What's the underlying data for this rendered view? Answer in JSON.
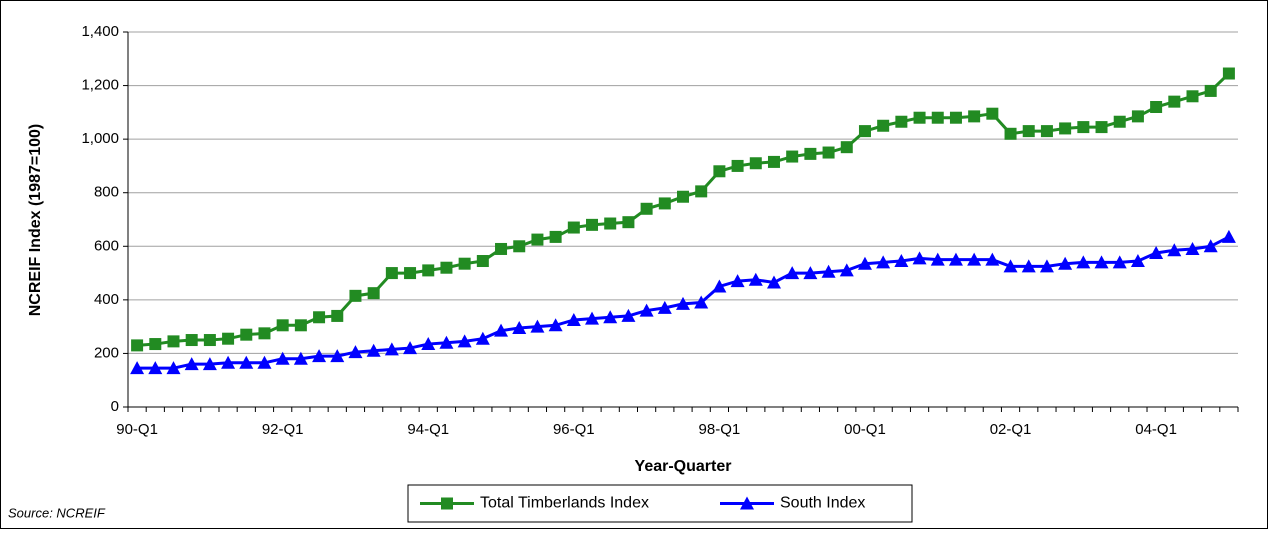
{
  "chart_data": {
    "type": "line",
    "y_label": "NCREIF Index (1987=100)",
    "x_label": "Year-Quarter",
    "source": "Source: NCREIF",
    "categories": [
      "90-Q1",
      null,
      null,
      null,
      null,
      null,
      null,
      null,
      "92-Q1",
      null,
      null,
      null,
      null,
      null,
      null,
      null,
      "94-Q1",
      null,
      null,
      null,
      null,
      null,
      null,
      null,
      "96-Q1",
      null,
      null,
      null,
      null,
      null,
      null,
      null,
      "98-Q1",
      null,
      null,
      null,
      null,
      null,
      null,
      null,
      "00-Q1",
      null,
      null,
      null,
      null,
      null,
      null,
      null,
      "02-Q1",
      null,
      null,
      null,
      null,
      null,
      null,
      null,
      "04-Q1",
      null,
      null,
      null,
      null
    ],
    "series": [
      {
        "name": "Total Timberlands Index",
        "color": "#228b22",
        "marker": "square",
        "values": [
          230,
          235,
          245,
          250,
          250,
          255,
          270,
          275,
          305,
          305,
          335,
          340,
          415,
          425,
          500,
          500,
          510,
          520,
          535,
          545,
          590,
          600,
          625,
          635,
          670,
          680,
          685,
          690,
          740,
          760,
          785,
          805,
          880,
          900,
          910,
          915,
          935,
          945,
          950,
          970,
          1030,
          1050,
          1065,
          1080,
          1080,
          1080,
          1085,
          1095,
          1020,
          1030,
          1030,
          1040,
          1045,
          1045,
          1065,
          1085,
          1120,
          1140,
          1160,
          1180,
          1245
        ]
      },
      {
        "name": "South Index",
        "color": "#0000ff",
        "marker": "triangle",
        "values": [
          145,
          145,
          145,
          160,
          160,
          165,
          165,
          165,
          180,
          180,
          190,
          190,
          205,
          210,
          215,
          220,
          235,
          240,
          245,
          255,
          285,
          295,
          300,
          305,
          325,
          330,
          335,
          340,
          360,
          370,
          385,
          390,
          450,
          470,
          475,
          465,
          500,
          500,
          505,
          510,
          535,
          540,
          545,
          555,
          550,
          550,
          550,
          550,
          525,
          525,
          525,
          535,
          540,
          540,
          540,
          545,
          575,
          585,
          590,
          600,
          635
        ]
      }
    ],
    "ylim": [
      0,
      1400
    ],
    "yticks": [
      0,
      200,
      400,
      600,
      800,
      {
        "value": 1000,
        "label": "1,000"
      },
      {
        "value": 1200,
        "label": "1,200"
      },
      {
        "value": 1400,
        "label": "1,400"
      }
    ],
    "grid": true,
    "legend": "bottom"
  }
}
